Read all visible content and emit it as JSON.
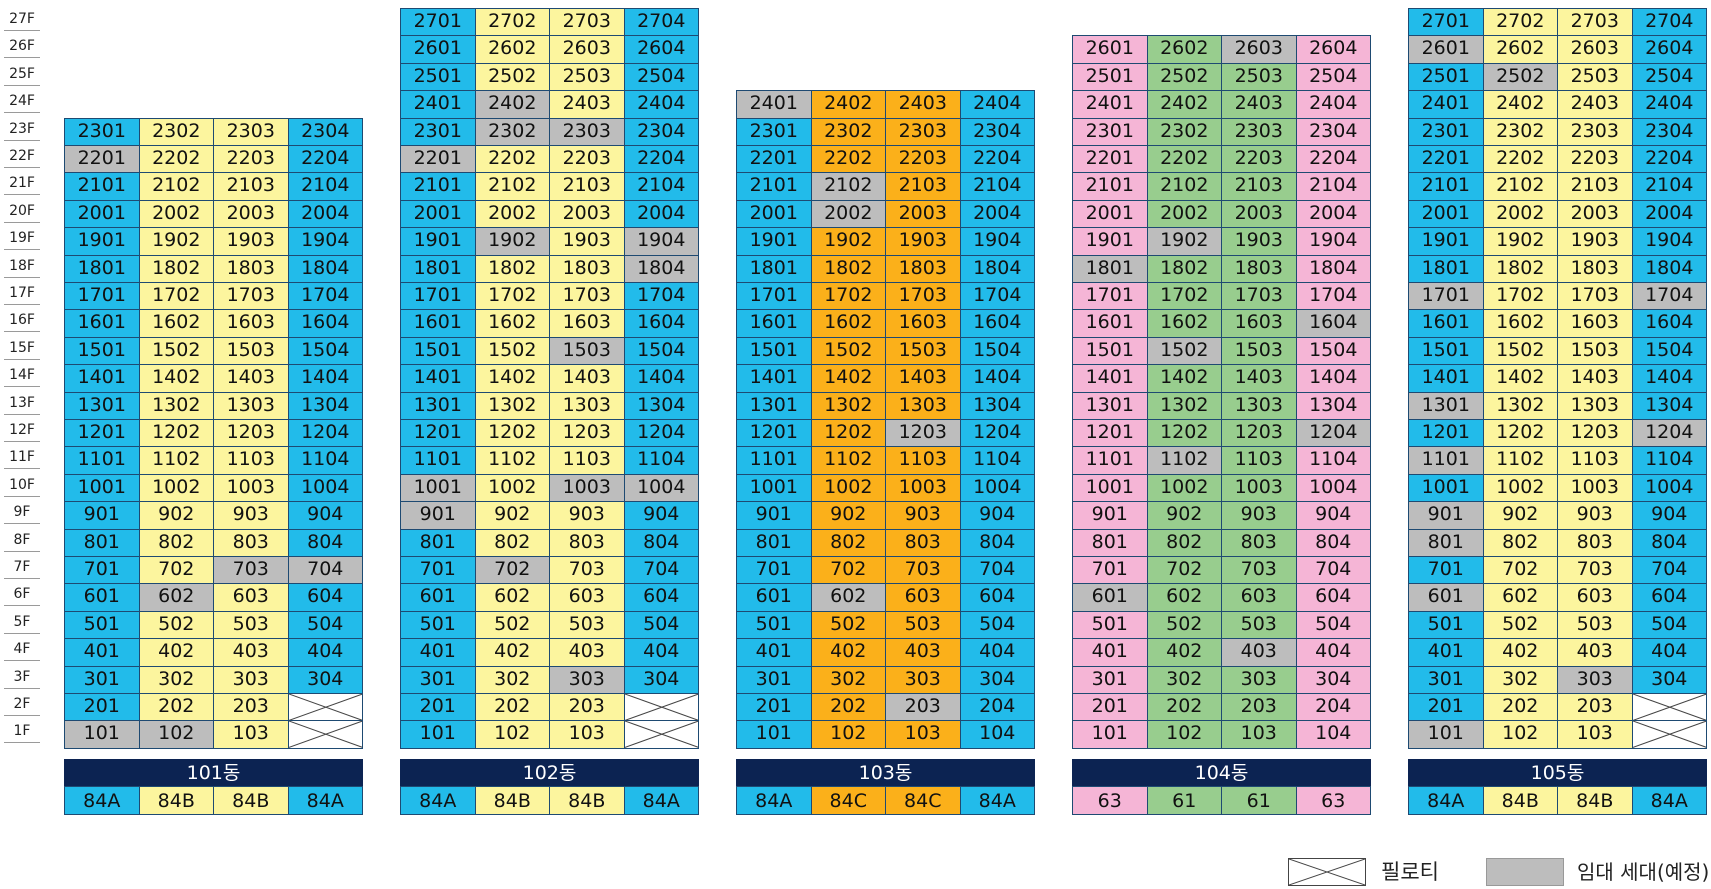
{
  "floors": [
    "27F",
    "26F",
    "25F",
    "24F",
    "23F",
    "22F",
    "21F",
    "20F",
    "19F",
    "18F",
    "17F",
    "16F",
    "15F",
    "14F",
    "13F",
    "12F",
    "11F",
    "10F",
    "9F",
    "8F",
    "7F",
    "6F",
    "5F",
    "4F",
    "3F",
    "2F",
    "1F"
  ],
  "colors": {
    "blue": "#22bbea",
    "yellow": "#fcf59e",
    "orange": "#fbb01a",
    "pink": "#f5b5d6",
    "green": "#98cd8e",
    "gray": "#bdbdbd",
    "navy": "#0c2352"
  },
  "buildings": [
    {
      "name": "101동",
      "top_floor": 23,
      "column_colors": [
        "blue",
        "yellow",
        "yellow",
        "blue"
      ],
      "unit_types": [
        "84A",
        "84B",
        "84B",
        "84A"
      ],
      "piloti": [
        "204",
        "104"
      ],
      "gray_units": [
        "2201",
        "602",
        "703",
        "704",
        "101",
        "102"
      ]
    },
    {
      "name": "102동",
      "top_floor": 27,
      "column_colors": [
        "blue",
        "yellow",
        "yellow",
        "blue"
      ],
      "unit_types": [
        "84A",
        "84B",
        "84B",
        "84A"
      ],
      "piloti": [
        "204",
        "104"
      ],
      "gray_units": [
        "2402",
        "2302",
        "2303",
        "2201",
        "1902",
        "1904",
        "1804",
        "1503",
        "1001",
        "1003",
        "1004",
        "901",
        "702",
        "303"
      ]
    },
    {
      "name": "103동",
      "top_floor": 24,
      "column_colors": [
        "blue",
        "orange",
        "orange",
        "blue"
      ],
      "unit_types": [
        "84A",
        "84C",
        "84C",
        "84A"
      ],
      "piloti": [],
      "gray_units": [
        "2401",
        "2102",
        "2002",
        "1203",
        "602",
        "203"
      ]
    },
    {
      "name": "104동",
      "top_floor": 26,
      "column_colors": [
        "pink",
        "green",
        "green",
        "pink"
      ],
      "unit_types": [
        "63",
        "61",
        "61",
        "63"
      ],
      "piloti": [],
      "gray_units": [
        "2603",
        "1902",
        "1801",
        "1604",
        "1502",
        "1204",
        "1102",
        "601",
        "403"
      ]
    },
    {
      "name": "105동",
      "top_floor": 27,
      "column_colors": [
        "blue",
        "yellow",
        "yellow",
        "blue"
      ],
      "unit_types": [
        "84A",
        "84B",
        "84B",
        "84A"
      ],
      "piloti": [
        "204",
        "104"
      ],
      "gray_units": [
        "2601",
        "2502",
        "1701",
        "1704",
        "1301",
        "1204",
        "1101",
        "901",
        "801",
        "601",
        "303",
        "101"
      ]
    }
  ],
  "legend": {
    "piloti_label": "필로티",
    "rental_label": "임대 세대(예정)"
  }
}
